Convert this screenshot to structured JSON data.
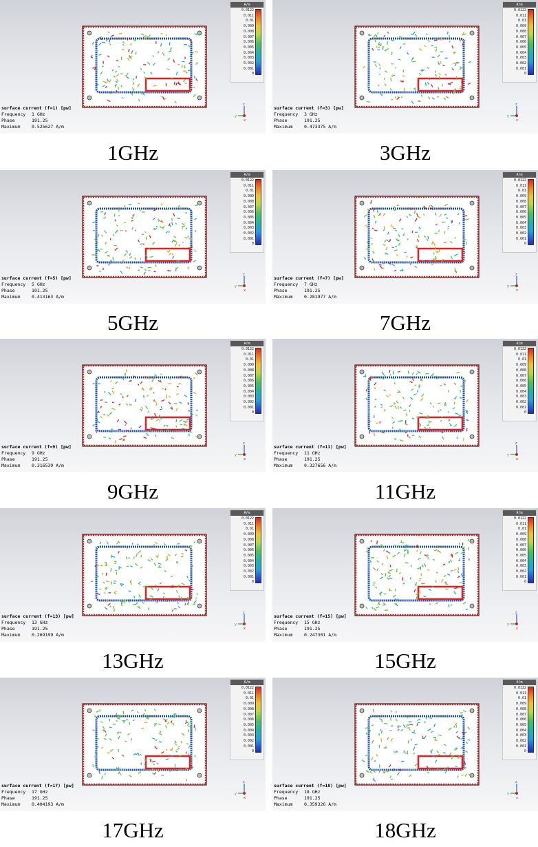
{
  "info_header_labels": {
    "frequency": "Frequency",
    "phase": "Phase",
    "maximum": "Maximum"
  },
  "legend": {
    "unit": "A/m",
    "ticks": [
      "0.0122",
      "0.011",
      "0.01",
      "0.009",
      "0.008",
      "0.007",
      "0.006",
      "0.005",
      "0.004",
      "0.003",
      "0.002",
      "0.001",
      "0"
    ]
  },
  "axis_labels": {
    "y": "y",
    "z": "z",
    "x": "x"
  },
  "colors": {
    "board_edge": "#c21d1d",
    "frame": "#1f4fa3",
    "arrow_hot": "#e32020",
    "arrow_warm": "#f0a020",
    "arrow_mid": "#5cc640",
    "arrow_cool": "#20a8c0"
  },
  "panels": [
    {
      "title": "surface current (f=1) [pw]",
      "frequency": "1 GHz",
      "phase": "191.25",
      "maximum": "0.525627 A/m",
      "caption": "1GHz",
      "hot": 0.55
    },
    {
      "title": "surface current (f=3) [pw]",
      "frequency": "3 GHz",
      "phase": "191.25",
      "maximum": "0.473375 A/m",
      "caption": "3GHz",
      "hot": 0.35
    },
    {
      "title": "surface current (f=5) [pw]",
      "frequency": "5 GHz",
      "phase": "191.25",
      "maximum": "0.413163 A/m",
      "caption": "5GHz",
      "hot": 0.4
    },
    {
      "title": "surface current (f=7) [pw]",
      "frequency": "7 GHz",
      "phase": "191.25",
      "maximum": "0.281977 A/m",
      "caption": "7GHz",
      "hot": 0.6
    },
    {
      "title": "surface current (f=9) [pw]",
      "frequency": "9 GHz",
      "phase": "191.25",
      "maximum": "0.316539 A/m",
      "caption": "9GHz",
      "hot": 0.65
    },
    {
      "title": "surface current (f=11) [pw]",
      "frequency": "11 GHz",
      "phase": "191.25",
      "maximum": "0.327656 A/m",
      "caption": "11GHz",
      "hot": 0.45
    },
    {
      "title": "surface current (f=13) [pw]",
      "frequency": "13 GHz",
      "phase": "191.25",
      "maximum": "0.269199 A/m",
      "caption": "13GHz",
      "hot": 0.3
    },
    {
      "title": "surface current (f=15) [pw]",
      "frequency": "15 GHz",
      "phase": "191.25",
      "maximum": "0.247301 A/m",
      "caption": "15GHz",
      "hot": 0.3
    },
    {
      "title": "surface current (f=17) [pw]",
      "frequency": "17 GHz",
      "phase": "191.25",
      "maximum": "0.404193 A/m",
      "caption": "17GHz",
      "hot": 0.25
    },
    {
      "title": "surface current (f=18) [pw]",
      "frequency": "18 GHz",
      "phase": "191.25",
      "maximum": "0.359326 A/m",
      "caption": "18GHz",
      "hot": 0.25
    }
  ]
}
